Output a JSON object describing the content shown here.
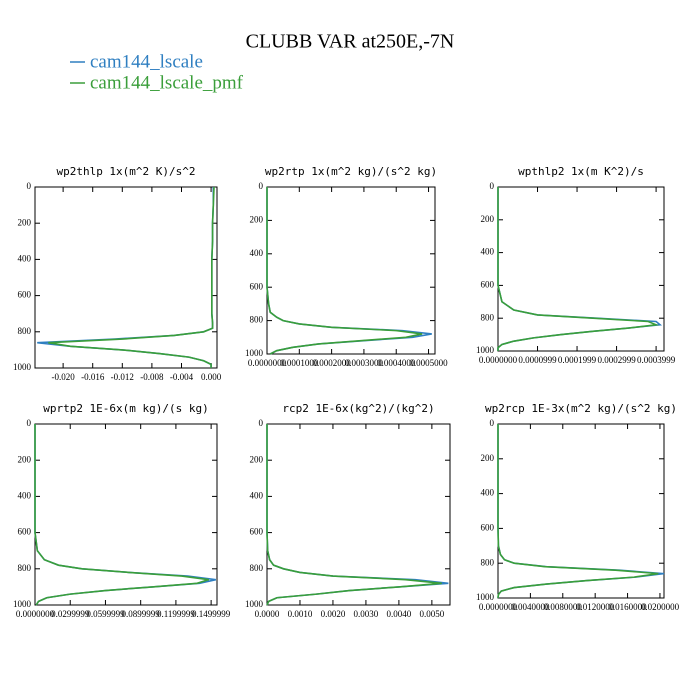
{
  "title": "CLUBB VAR at250E,-7N",
  "chart_data": [
    {
      "type": "line",
      "title": "wp2thlp  1x(m^2 K)/s^2",
      "y_inverted": true,
      "y": [
        0,
        100,
        200,
        300,
        400,
        500,
        600,
        700,
        750,
        780,
        800,
        820,
        840,
        860,
        880,
        900,
        920,
        940,
        960,
        980,
        1000
      ],
      "series": [
        {
          "name": "cam144_lscale",
          "color": "#2f7fc1",
          "values": [
            0.0003,
            0.0003,
            0.0002,
            0.0002,
            0.0001,
            0.0001,
            0.0001,
            0.0001,
            0.0002,
            0.0002,
            -0.001,
            -0.005,
            -0.013,
            -0.0235,
            -0.019,
            -0.012,
            -0.007,
            -0.003,
            -0.001,
            0.0,
            0.0
          ]
        },
        {
          "name": "cam144_lscale_pmf",
          "color": "#3a9e3a",
          "values": [
            0.0004,
            0.0003,
            0.0002,
            0.0002,
            0.0001,
            0.0001,
            0.0001,
            0.0001,
            0.0002,
            0.0002,
            -0.001,
            -0.005,
            -0.012,
            -0.022,
            -0.019,
            -0.012,
            -0.007,
            -0.003,
            -0.001,
            0.0,
            0.0
          ]
        }
      ],
      "xlim": [
        -0.0238,
        0.0008
      ],
      "ylim": [
        0,
        1000
      ],
      "xticks": [
        {
          "value": -0.02,
          "label": "-0.020"
        },
        {
          "value": -0.016,
          "label": "-0.016"
        },
        {
          "value": -0.012,
          "label": "-0.012"
        },
        {
          "value": -0.008,
          "label": "-0.008"
        },
        {
          "value": -0.004,
          "label": "-0.004"
        },
        {
          "value": 0,
          "label": "0.000"
        }
      ],
      "yticks": [
        0,
        200,
        400,
        600,
        800,
        1000
      ]
    },
    {
      "type": "line",
      "title": "wp2rtp  1x(m^2 kg)/(s^2 kg)",
      "y_inverted": true,
      "y": [
        0,
        100,
        200,
        300,
        400,
        500,
        600,
        700,
        750,
        780,
        800,
        820,
        840,
        860,
        880,
        900,
        920,
        940,
        960,
        980,
        1000
      ],
      "series": [
        {
          "name": "cam144_lscale",
          "color": "#2f7fc1",
          "values": [
            0,
            0,
            0,
            0,
            0,
            0,
            0,
            5e-06,
            1e-05,
            3e-05,
            5e-05,
            0.0001,
            0.0002,
            0.00042,
            0.00051,
            0.00045,
            0.0003,
            0.00016,
            8e-05,
            3e-05,
            1e-05
          ]
        },
        {
          "name": "cam144_lscale_pmf",
          "color": "#3a9e3a",
          "values": [
            0,
            0,
            0,
            0,
            0,
            0,
            0,
            5e-06,
            1e-05,
            3e-05,
            5e-05,
            0.0001,
            0.0002,
            0.0004,
            0.00048,
            0.00043,
            0.00029,
            0.00016,
            8e-05,
            3e-05,
            1e-05
          ]
        }
      ],
      "xlim": [
        0,
        0.00052
      ],
      "ylim": [
        0,
        1000
      ],
      "xticks": [
        {
          "value": 0,
          "label": "0.0000000"
        },
        {
          "value": 0.0001,
          "label": "0.0001000"
        },
        {
          "value": 0.0002,
          "label": "0.0002000"
        },
        {
          "value": 0.0003,
          "label": "0.0003000"
        },
        {
          "value": 0.0004,
          "label": "0.0004000"
        },
        {
          "value": 0.0005,
          "label": "0.0005000"
        }
      ],
      "yticks": [
        0,
        200,
        400,
        600,
        800,
        1000
      ]
    },
    {
      "type": "line",
      "title": "wpthlp2  1x(m K^2)/s",
      "y_inverted": true,
      "y": [
        0,
        100,
        200,
        300,
        400,
        500,
        600,
        700,
        750,
        780,
        800,
        820,
        840,
        860,
        880,
        900,
        920,
        940,
        960,
        980,
        1000
      ],
      "series": [
        {
          "name": "cam144_lscale",
          "color": "#2f7fc1",
          "values": [
            0,
            0,
            0,
            0,
            0,
            0,
            0,
            1e-05,
            4e-05,
            0.0001,
            0.00025,
            0.0004,
            0.00041,
            0.00033,
            0.00024,
            0.00016,
            9e-05,
            4e-05,
            1e-05,
            0,
            0
          ]
        },
        {
          "name": "cam144_lscale_pmf",
          "color": "#3a9e3a",
          "values": [
            0,
            0,
            0,
            0,
            0,
            0,
            0,
            1e-05,
            4e-05,
            0.0001,
            0.00024,
            0.00038,
            0.0004,
            0.00033,
            0.00024,
            0.00016,
            9e-05,
            4e-05,
            1e-05,
            0,
            0
          ]
        }
      ],
      "xlim": [
        0,
        0.00042
      ],
      "ylim": [
        0,
        1000
      ],
      "xticks": [
        {
          "value": 0,
          "label": "0.0000000"
        },
        {
          "value": 0.0001,
          "label": "0.0000999"
        },
        {
          "value": 0.0002,
          "label": "0.0001999"
        },
        {
          "value": 0.0003,
          "label": "0.0002999"
        },
        {
          "value": 0.0004,
          "label": "0.0003999"
        }
      ],
      "yticks": [
        0,
        200,
        400,
        600,
        800,
        1000
      ]
    },
    {
      "type": "line",
      "title": "wprtp2  1E-6x(m kg)/(s kg)",
      "y_inverted": true,
      "y": [
        0,
        100,
        200,
        300,
        400,
        500,
        600,
        700,
        750,
        780,
        800,
        820,
        840,
        860,
        880,
        900,
        920,
        940,
        960,
        980,
        1000
      ],
      "series": [
        {
          "name": "cam144_lscale",
          "color": "#2f7fc1",
          "values": [
            0,
            0,
            0,
            0,
            0,
            0,
            0,
            0.002,
            0.008,
            0.02,
            0.04,
            0.08,
            0.13,
            0.154,
            0.14,
            0.1,
            0.06,
            0.03,
            0.01,
            0.003,
            0.001
          ]
        },
        {
          "name": "cam144_lscale_pmf",
          "color": "#3a9e3a",
          "values": [
            0,
            0,
            0,
            0,
            0,
            0,
            0,
            0.002,
            0.008,
            0.02,
            0.04,
            0.08,
            0.125,
            0.148,
            0.138,
            0.1,
            0.06,
            0.03,
            0.01,
            0.003,
            0.001
          ]
        }
      ],
      "xlim": [
        0,
        0.155
      ],
      "ylim": [
        0,
        1000
      ],
      "xticks": [
        {
          "value": 0,
          "label": "0.0000000"
        },
        {
          "value": 0.03,
          "label": "0.0299999"
        },
        {
          "value": 0.06,
          "label": "0.0599999"
        },
        {
          "value": 0.09,
          "label": "0.0899999"
        },
        {
          "value": 0.12,
          "label": "0.1199999"
        },
        {
          "value": 0.15,
          "label": "0.1499999"
        }
      ],
      "yticks": [
        0,
        200,
        400,
        600,
        800,
        1000
      ]
    },
    {
      "type": "line",
      "title": "rcp2  1E-6x(kg^2)/(kg^2)",
      "y_inverted": true,
      "y": [
        0,
        100,
        200,
        300,
        400,
        500,
        600,
        700,
        750,
        780,
        800,
        820,
        840,
        860,
        880,
        900,
        920,
        940,
        960,
        980,
        1000
      ],
      "series": [
        {
          "name": "cam144_lscale",
          "color": "#2f7fc1",
          "values": [
            0,
            0,
            0,
            0,
            0,
            0,
            0,
            2e-05,
            8e-05,
            0.0002,
            0.0005,
            0.001,
            0.002,
            0.0045,
            0.0055,
            0.004,
            0.0025,
            0.0015,
            0.0003,
            5e-05,
            0
          ]
        },
        {
          "name": "cam144_lscale_pmf",
          "color": "#3a9e3a",
          "values": [
            0,
            0,
            0,
            0,
            0,
            0,
            0,
            2e-05,
            8e-05,
            0.0002,
            0.0005,
            0.001,
            0.002,
            0.0042,
            0.0053,
            0.004,
            0.0025,
            0.0015,
            0.0003,
            5e-05,
            0
          ]
        }
      ],
      "xlim": [
        0,
        0.00555
      ],
      "ylim": [
        0,
        1000
      ],
      "xticks": [
        {
          "value": 0,
          "label": "0.0000"
        },
        {
          "value": 0.001,
          "label": "0.0010"
        },
        {
          "value": 0.002,
          "label": "0.0020"
        },
        {
          "value": 0.003,
          "label": "0.0030"
        },
        {
          "value": 0.004,
          "label": "0.0040"
        },
        {
          "value": 0.005,
          "label": "0.0050"
        }
      ],
      "yticks": [
        0,
        200,
        400,
        600,
        800,
        1000
      ]
    },
    {
      "type": "line",
      "title": "wp2rcp  1E-3x(m^2 kg)/(s^2 kg)",
      "y_inverted": true,
      "y": [
        0,
        100,
        200,
        300,
        400,
        500,
        600,
        700,
        750,
        780,
        800,
        820,
        840,
        860,
        880,
        900,
        920,
        940,
        960,
        980,
        1000
      ],
      "series": [
        {
          "name": "cam144_lscale",
          "color": "#2f7fc1",
          "values": [
            0,
            0,
            0,
            0,
            0,
            0,
            0,
            5e-05,
            0.0003,
            0.0008,
            0.002,
            0.006,
            0.015,
            0.0205,
            0.017,
            0.011,
            0.006,
            0.002,
            0.0004,
            5e-05,
            0
          ]
        },
        {
          "name": "cam144_lscale_pmf",
          "color": "#3a9e3a",
          "values": [
            0,
            0,
            0,
            0,
            0,
            0,
            0,
            5e-05,
            0.0003,
            0.0008,
            0.002,
            0.0058,
            0.0145,
            0.0198,
            0.0168,
            0.011,
            0.006,
            0.002,
            0.0004,
            5e-05,
            0
          ]
        }
      ],
      "xlim": [
        0,
        0.0205
      ],
      "ylim": [
        0,
        1000
      ],
      "xticks": [
        {
          "value": 0,
          "label": "0.0000000"
        },
        {
          "value": 0.004,
          "label": "0.0040000"
        },
        {
          "value": 0.008,
          "label": "0.0080000"
        },
        {
          "value": 0.012,
          "label": "0.0120000"
        },
        {
          "value": 0.016,
          "label": "0.0160000"
        },
        {
          "value": 0.02,
          "label": "0.0200000"
        }
      ],
      "yticks": [
        0,
        200,
        400,
        600,
        800,
        1000
      ]
    }
  ]
}
